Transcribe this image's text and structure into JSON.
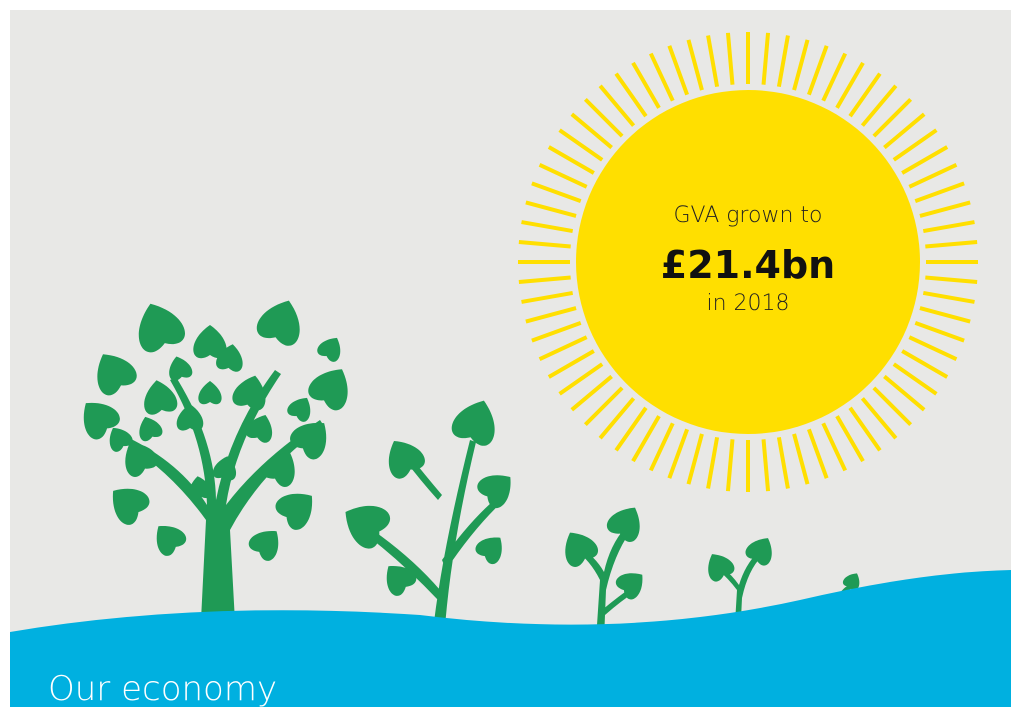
{
  "sun": {
    "line1": "GVA grown to",
    "headline": "£21.4bn",
    "line3": "in 2018"
  },
  "footer": {
    "title": "Our economy"
  }
}
